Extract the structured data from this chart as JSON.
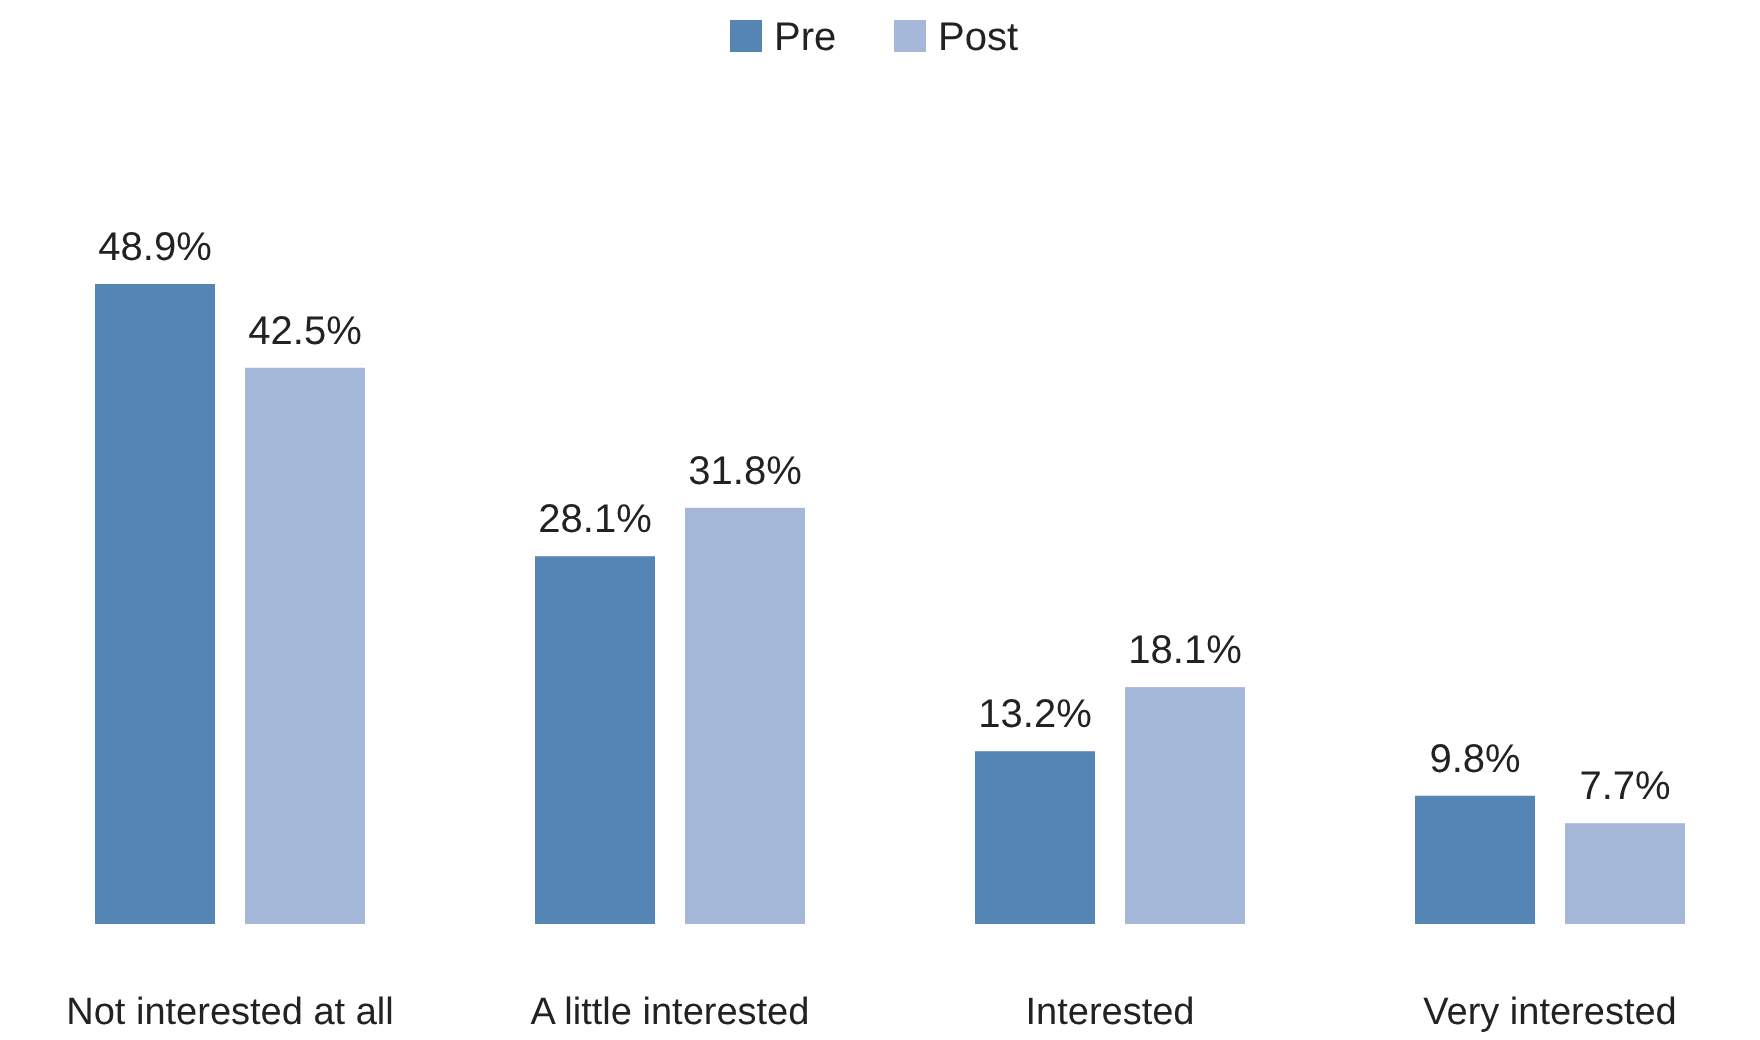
{
  "chart_data": {
    "type": "bar",
    "categories": [
      "Not interested at all",
      "A little interested",
      "Interested",
      "Very interested"
    ],
    "series": [
      {
        "name": "Pre",
        "color": "#5585b5",
        "values": [
          48.9,
          28.1,
          13.2,
          9.8
        ],
        "value_labels": [
          "48.9%",
          "28.1%",
          "13.2%",
          "9.8%"
        ]
      },
      {
        "name": "Post",
        "color": "#a5b8d9",
        "values": [
          42.5,
          31.8,
          18.1,
          7.7
        ],
        "value_labels": [
          "42.5%",
          "31.8%",
          "18.1%",
          "7.7%"
        ]
      }
    ],
    "legend": "top",
    "grid": false
  }
}
